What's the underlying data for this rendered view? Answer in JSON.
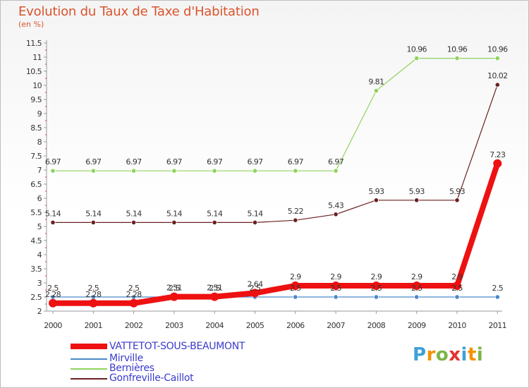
{
  "chart_data": {
    "type": "line",
    "title": "Evolution du Taux de Taxe d'Habitation",
    "subtitle": "(en %)",
    "x": [
      "2000",
      "2001",
      "2002",
      "2003",
      "2004",
      "2005",
      "2006",
      "2007",
      "2008",
      "2009",
      "2010",
      "2011"
    ],
    "ylim": [
      2,
      11.5
    ],
    "yticks": [
      "2",
      "2.5",
      "3",
      "3.5",
      "4",
      "4.5",
      "5",
      "5.5",
      "6",
      "6.5",
      "7",
      "7.5",
      "8",
      "8.5",
      "9",
      "9.5",
      "10",
      "10.5",
      "11",
      "11.5"
    ],
    "grid": false,
    "legend_position": "bottom-left",
    "series": [
      {
        "name": "VATTETOT-SOUS-BEAUMONT",
        "color": "#ee1111",
        "values": [
          2.28,
          2.28,
          2.28,
          2.51,
          2.51,
          2.64,
          2.9,
          2.9,
          2.9,
          2.9,
          2.9,
          7.23
        ],
        "labels": [
          "2.28",
          "2.28",
          "2.28",
          "2.51",
          "2.51",
          "2.64",
          "2.9",
          "2.9",
          "2.9",
          "2.9",
          "2.9",
          "7.23"
        ]
      },
      {
        "name": "Mirville",
        "color": "#4a89c8",
        "values": [
          2.5,
          2.5,
          2.5,
          2.5,
          2.5,
          2.5,
          2.5,
          2.5,
          2.5,
          2.5,
          2.5,
          2.5
        ],
        "labels": [
          "2.5",
          "2.5",
          "2.5",
          "2.5",
          "2.5",
          "2.5",
          "2.5",
          "2.5",
          "2.5",
          "2.5",
          "2.5",
          "2.5"
        ]
      },
      {
        "name": "Bernières",
        "color": "#8fd35c",
        "values": [
          6.97,
          6.97,
          6.97,
          6.97,
          6.97,
          6.97,
          6.97,
          6.97,
          9.81,
          10.96,
          10.96,
          10.96
        ],
        "labels": [
          "6.97",
          "6.97",
          "6.97",
          "6.97",
          "6.97",
          "6.97",
          "6.97",
          "6.97",
          "9.81",
          "10.96",
          "10.96",
          "10.96"
        ]
      },
      {
        "name": "Gonfreville-Caillot",
        "color": "#6b2020",
        "values": [
          5.14,
          5.14,
          5.14,
          5.14,
          5.14,
          5.14,
          5.22,
          5.43,
          5.93,
          5.93,
          5.93,
          10.02
        ],
        "labels": [
          "5.14",
          "5.14",
          "5.14",
          "5.14",
          "5.14",
          "5.14",
          "5.22",
          "5.43",
          "5.93",
          "5.93",
          "5.93",
          "10.02"
        ]
      }
    ]
  },
  "legend": {
    "items": [
      {
        "label": "VATTETOT-SOUS-BEAUMONT",
        "color": "#ee1111"
      },
      {
        "label": "Mirville",
        "color": "#4a89c8"
      },
      {
        "label": "Bernières",
        "color": "#8fd35c"
      },
      {
        "label": "Gonfreville-Caillot",
        "color": "#6b2020"
      }
    ]
  },
  "logo": {
    "letters": [
      "P",
      "r",
      "o",
      "x",
      "i",
      "t",
      "i"
    ],
    "colors": [
      "#3fa0d8",
      "#f39200",
      "#7ab648",
      "#e4322b",
      "#3fa0d8",
      "#f39200",
      "#7ab648"
    ]
  }
}
